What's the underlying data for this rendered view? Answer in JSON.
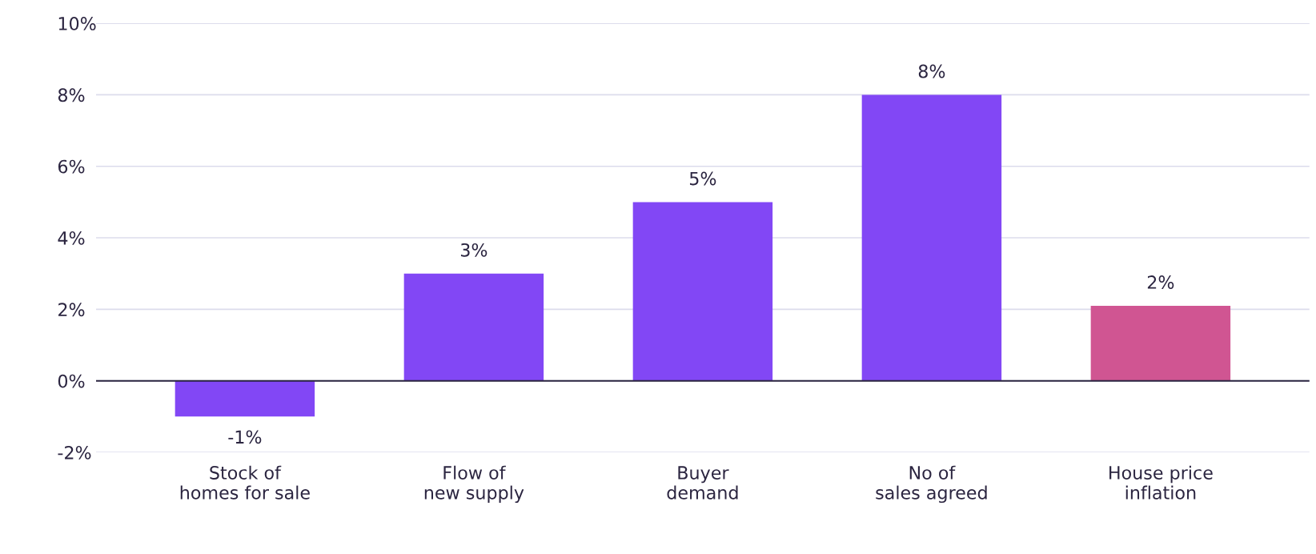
{
  "chart_data": {
    "type": "bar",
    "categories": [
      "Stock of\nhomes for sale",
      "Flow of\nnew supply",
      "Buyer\ndemand",
      "No of\nsales agreed",
      "House price\ninflation"
    ],
    "values": [
      -1,
      3,
      5,
      8,
      2.1
    ],
    "value_labels": [
      "-1%",
      "3%",
      "5%",
      "8%",
      "2%"
    ],
    "colors": [
      "#8247f5",
      "#8247f5",
      "#8247f5",
      "#8247f5",
      "#d05592"
    ],
    "ylim": [
      -2,
      10
    ],
    "yticks": [
      {
        "value": -2,
        "label": "-2%"
      },
      {
        "value": 0,
        "label": "0%"
      },
      {
        "value": 2,
        "label": "2%"
      },
      {
        "value": 4,
        "label": "4%"
      },
      {
        "value": 6,
        "label": "6%"
      },
      {
        "value": 8,
        "label": "8%"
      },
      {
        "value": 10,
        "label": "10%"
      }
    ],
    "ref_lines": [
      {
        "axis": "y",
        "value": 0,
        "color": "#2b2540"
      }
    ],
    "grid": "y",
    "legend": false
  }
}
